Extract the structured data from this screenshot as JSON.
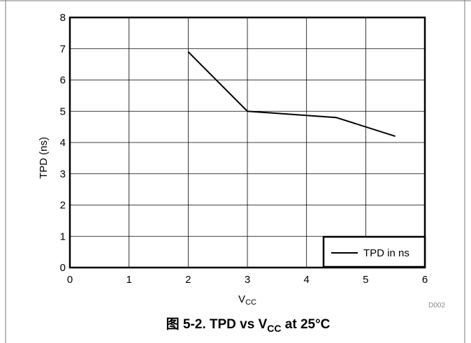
{
  "chart_data": {
    "type": "line",
    "xlabel": "V",
    "xlabel_sub": "CC",
    "ylabel": "TPD (ns)",
    "xlim": [
      0,
      6
    ],
    "ylim": [
      0,
      8
    ],
    "x_ticks": [
      "0",
      "1",
      "2",
      "3",
      "4",
      "5",
      "6"
    ],
    "y_ticks": [
      "0",
      "1",
      "2",
      "3",
      "4",
      "5",
      "6",
      "7",
      "8"
    ],
    "grid": true,
    "legend_position": "bottom-right",
    "series": [
      {
        "name": "TPD in ns",
        "x": [
          2,
          3,
          4.5,
          5.5
        ],
        "y": [
          6.9,
          5.0,
          4.8,
          4.2
        ]
      }
    ],
    "figure_id": "D002",
    "caption": {
      "prefix": "图 5-2. TPD vs V",
      "sub": "CC",
      "suffix": " at 25°C"
    }
  },
  "colors": {
    "line": "#000000",
    "grid": "#000000",
    "frame": "#000000",
    "figure_id": "#8a8a8a"
  }
}
